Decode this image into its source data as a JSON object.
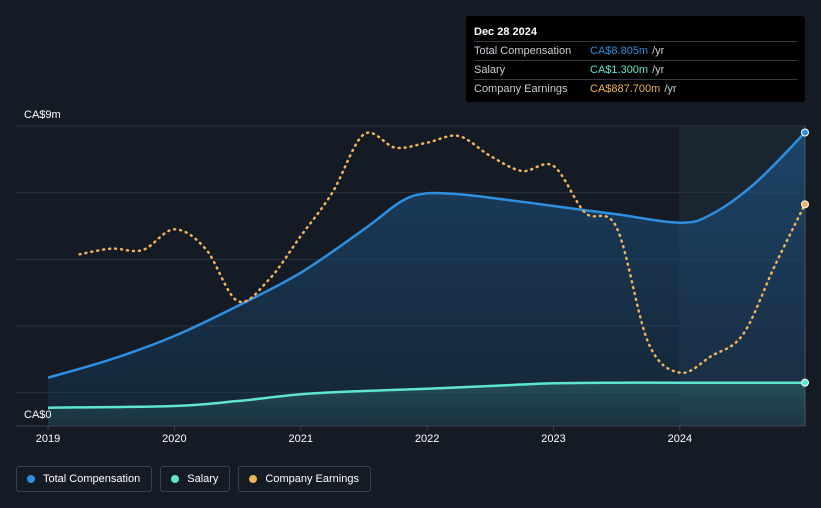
{
  "tooltip": {
    "date": "Dec 28 2024",
    "rows": [
      {
        "label": "Total Compensation",
        "value": "CA$8.805m",
        "unit": "/yr"
      },
      {
        "label": "Salary",
        "value": "CA$1.300m",
        "unit": "/yr"
      },
      {
        "label": "Company Earnings",
        "value": "CA$887.700m",
        "unit": "/yr"
      }
    ]
  },
  "legend": {
    "total": "Total Compensation",
    "salary": "Salary",
    "earnings": "Company Earnings"
  },
  "colors": {
    "total": "#2e8fe0",
    "salary": "#5ee6cf",
    "earnings": "#f0b35a",
    "background": "#151b24"
  },
  "chart_data": {
    "type": "line",
    "title": "",
    "xlabel": "",
    "ylabel": "",
    "y_tick_labels": [
      "CA$9m",
      "CA$0"
    ],
    "x_tick_labels": [
      "2019",
      "2020",
      "2021",
      "2022",
      "2023",
      "2024"
    ],
    "ylim": [
      0,
      9
    ],
    "xlim": [
      2019.0,
      2024.99
    ],
    "grid": true,
    "legend_position": "bottom-left",
    "series": [
      {
        "name": "Total Compensation",
        "unit": "CA$m",
        "points": [
          [
            2019.0,
            1.45
          ],
          [
            2019.5,
            2.0
          ],
          [
            2020.0,
            2.7
          ],
          [
            2020.5,
            3.6
          ],
          [
            2021.0,
            4.6
          ],
          [
            2021.5,
            5.9
          ],
          [
            2021.8,
            6.75
          ],
          [
            2022.0,
            6.98
          ],
          [
            2022.25,
            6.95
          ],
          [
            2022.5,
            6.85
          ],
          [
            2023.0,
            6.6
          ],
          [
            2023.5,
            6.35
          ],
          [
            2024.0,
            6.1
          ],
          [
            2024.25,
            6.35
          ],
          [
            2024.6,
            7.3
          ],
          [
            2024.99,
            8.805
          ]
        ]
      },
      {
        "name": "Salary",
        "unit": "CA$m",
        "points": [
          [
            2019.0,
            0.55
          ],
          [
            2020.0,
            0.6
          ],
          [
            2020.5,
            0.75
          ],
          [
            2021.0,
            0.95
          ],
          [
            2021.5,
            1.05
          ],
          [
            2022.0,
            1.12
          ],
          [
            2022.5,
            1.2
          ],
          [
            2023.0,
            1.28
          ],
          [
            2023.5,
            1.3
          ],
          [
            2024.0,
            1.3
          ],
          [
            2024.99,
            1.3
          ]
        ]
      },
      {
        "name": "Company Earnings",
        "unit": "CA$m",
        "points": [
          [
            2019.25,
            5.15
          ],
          [
            2019.5,
            5.32
          ],
          [
            2019.75,
            5.28
          ],
          [
            2020.0,
            5.9
          ],
          [
            2020.25,
            5.3
          ],
          [
            2020.5,
            3.75
          ],
          [
            2020.75,
            4.4
          ],
          [
            2021.0,
            5.7
          ],
          [
            2021.25,
            7.0
          ],
          [
            2021.5,
            8.75
          ],
          [
            2021.75,
            8.35
          ],
          [
            2022.0,
            8.5
          ],
          [
            2022.25,
            8.7
          ],
          [
            2022.5,
            8.1
          ],
          [
            2022.75,
            7.65
          ],
          [
            2023.0,
            7.8
          ],
          [
            2023.25,
            6.4
          ],
          [
            2023.5,
            5.95
          ],
          [
            2023.75,
            2.5
          ],
          [
            2024.0,
            1.6
          ],
          [
            2024.25,
            2.1
          ],
          [
            2024.5,
            2.75
          ],
          [
            2024.75,
            4.8
          ],
          [
            2024.99,
            6.65
          ]
        ]
      }
    ]
  }
}
